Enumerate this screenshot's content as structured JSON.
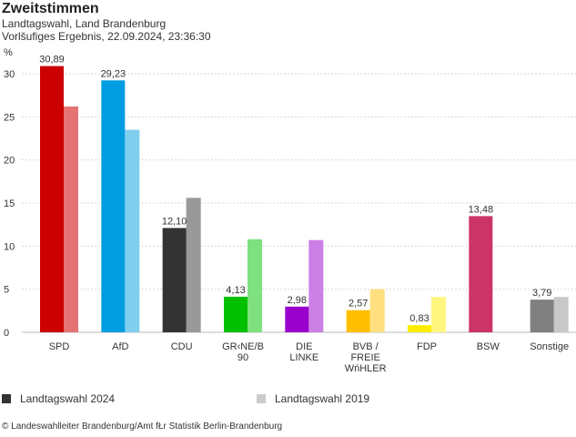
{
  "header": {
    "title": "Zweitstimmen",
    "subtitle1": "Landtagswahl, Land Brandenburg",
    "subtitle2": "Vorlšufiges Ergebnis, 22.09.2024, 23:36:30"
  },
  "chart_data": {
    "type": "bar",
    "ylabel": "%",
    "ylim": [
      0,
      30
    ],
    "yticks": [
      0,
      5,
      10,
      15,
      20,
      25,
      30
    ],
    "grid": true,
    "categories": [
      [
        "SPD"
      ],
      [
        "AfD"
      ],
      [
        "CDU"
      ],
      [
        "GR‹NE/B",
        "90"
      ],
      [
        "DIE",
        "LINKE"
      ],
      [
        "BVB /",
        "FREIE",
        "WńHLER"
      ],
      [
        "FDP"
      ],
      [
        "BSW"
      ],
      [
        "Sonstige"
      ]
    ],
    "series": [
      {
        "name": "Landtagswahl 2024",
        "values": [
          30.89,
          29.23,
          12.1,
          4.13,
          2.98,
          2.57,
          0.83,
          13.48,
          3.79
        ],
        "labels": [
          "30,89",
          "29,23",
          "12,10",
          "4,13",
          "2,98",
          "2,57",
          "0,83",
          "13,48",
          "3,79"
        ],
        "colors": [
          "#cc0000",
          "#009ee0",
          "#333333",
          "#00c000",
          "#9900cc",
          "#ffbf00",
          "#ffed00",
          "#cc3366",
          "#808080"
        ]
      },
      {
        "name": "Landtagswahl 2019",
        "values": [
          26.2,
          23.5,
          15.6,
          10.8,
          10.7,
          5.0,
          4.1,
          null,
          4.1
        ],
        "colors": [
          "#e57373",
          "#80cfef",
          "#999999",
          "#7fe07f",
          "#cc7fe5",
          "#ffdf80",
          "#fff680",
          null,
          "#c8c8c8"
        ]
      }
    ],
    "legend_position": "bottom",
    "legend_colors": [
      "#333333",
      "#cccccc"
    ]
  },
  "footer": {
    "source": "© Landeswahlleiter Brandenburg/Amt fŁr Statistik Berlin-Brandenburg"
  }
}
